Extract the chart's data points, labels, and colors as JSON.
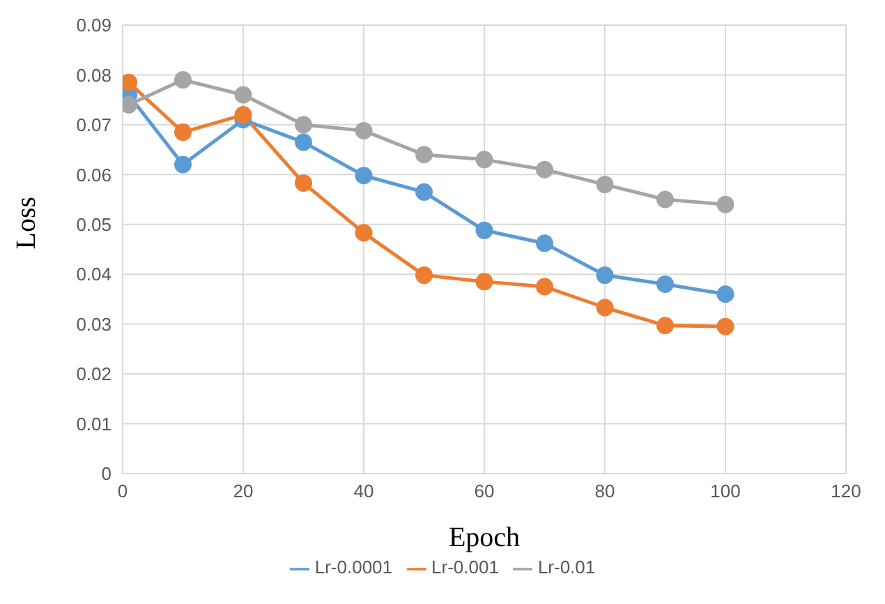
{
  "chart_data": {
    "type": "line",
    "xlabel": "Epoch",
    "ylabel": "Loss",
    "x": [
      1,
      10,
      20,
      30,
      40,
      50,
      60,
      70,
      80,
      90,
      100
    ],
    "series": [
      {
        "name": "Lr-0.0001",
        "color": "#5b9bd5",
        "values": [
          0.076,
          0.062,
          0.071,
          0.0665,
          0.0598,
          0.0565,
          0.0488,
          0.0462,
          0.0398,
          0.038,
          0.036
        ]
      },
      {
        "name": "Lr-0.001",
        "color": "#ed7d31",
        "values": [
          0.0785,
          0.0685,
          0.072,
          0.0583,
          0.0483,
          0.0398,
          0.0385,
          0.0375,
          0.0333,
          0.0297,
          0.0295
        ]
      },
      {
        "name": "Lr-0.01",
        "color": "#a5a5a5",
        "values": [
          0.074,
          0.079,
          0.076,
          0.07,
          0.0688,
          0.064,
          0.063,
          0.061,
          0.058,
          0.055,
          0.054
        ]
      }
    ],
    "xlim": [
      0,
      120
    ],
    "xticks": [
      0,
      20,
      40,
      60,
      80,
      100,
      120
    ],
    "ylim": [
      0,
      0.09
    ],
    "yticks": [
      0,
      0.01,
      0.02,
      0.03,
      0.04,
      0.05,
      0.06,
      0.07,
      0.08,
      0.09
    ],
    "grid": true,
    "legend": "bottom",
    "marker": "circle",
    "line_style": "solid"
  }
}
